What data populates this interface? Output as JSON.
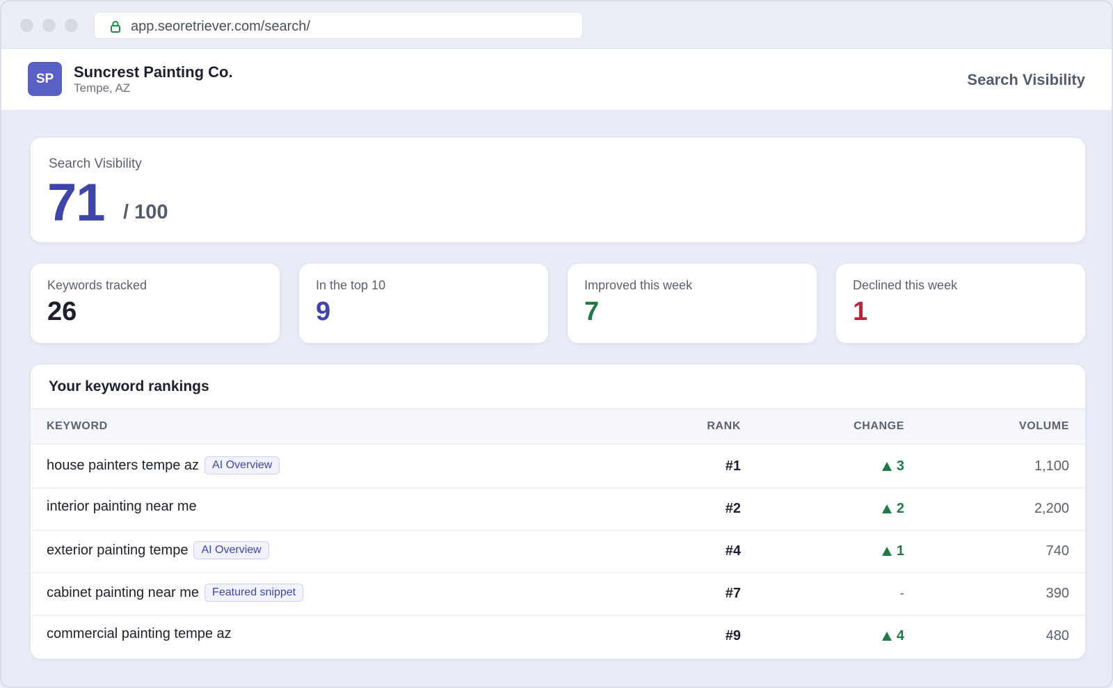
{
  "browser": {
    "url": "app.seoretriever.com/search/",
    "icon": "lock-icon",
    "lock_color": "#1f8a4c"
  },
  "header": {
    "avatar_initials": "SP",
    "business_name": "Suncrest Painting Co.",
    "location": "Tempe, AZ",
    "page_title": "Search Visibility"
  },
  "visibility": {
    "label": "Search Visibility",
    "score": "71",
    "max": "/ 100"
  },
  "stats": [
    {
      "label": "Keywords tracked",
      "value": "26",
      "color": "#1c1f2e"
    },
    {
      "label": "In the top 10",
      "value": "9",
      "color": "#3f45a8"
    },
    {
      "label": "Improved this week",
      "value": "7",
      "color": "#1f7a45"
    },
    {
      "label": "Declined this week",
      "value": "1",
      "color": "#c0263b"
    }
  ],
  "rankings": {
    "title": "Your keyword rankings",
    "columns": {
      "keyword": "KEYWORD",
      "rank": "RANK",
      "change": "CHANGE",
      "volume": "VOLUME"
    },
    "rows": [
      {
        "keyword": "house painters tempe az",
        "badge": "AI Overview",
        "rank": "#1",
        "change": "3",
        "direction": "up",
        "volume": "1,100"
      },
      {
        "keyword": "interior painting near me",
        "badge": "",
        "rank": "#2",
        "change": "2",
        "direction": "up",
        "volume": "2,200"
      },
      {
        "keyword": "exterior painting tempe",
        "badge": "AI Overview",
        "rank": "#4",
        "change": "1",
        "direction": "up",
        "volume": "740"
      },
      {
        "keyword": "cabinet painting near me",
        "badge": "Featured snippet",
        "rank": "#7",
        "change": "-",
        "direction": "flat",
        "volume": "390"
      },
      {
        "keyword": "commercial painting tempe az",
        "badge": "",
        "rank": "#9",
        "change": "4",
        "direction": "up",
        "volume": "480"
      }
    ]
  }
}
